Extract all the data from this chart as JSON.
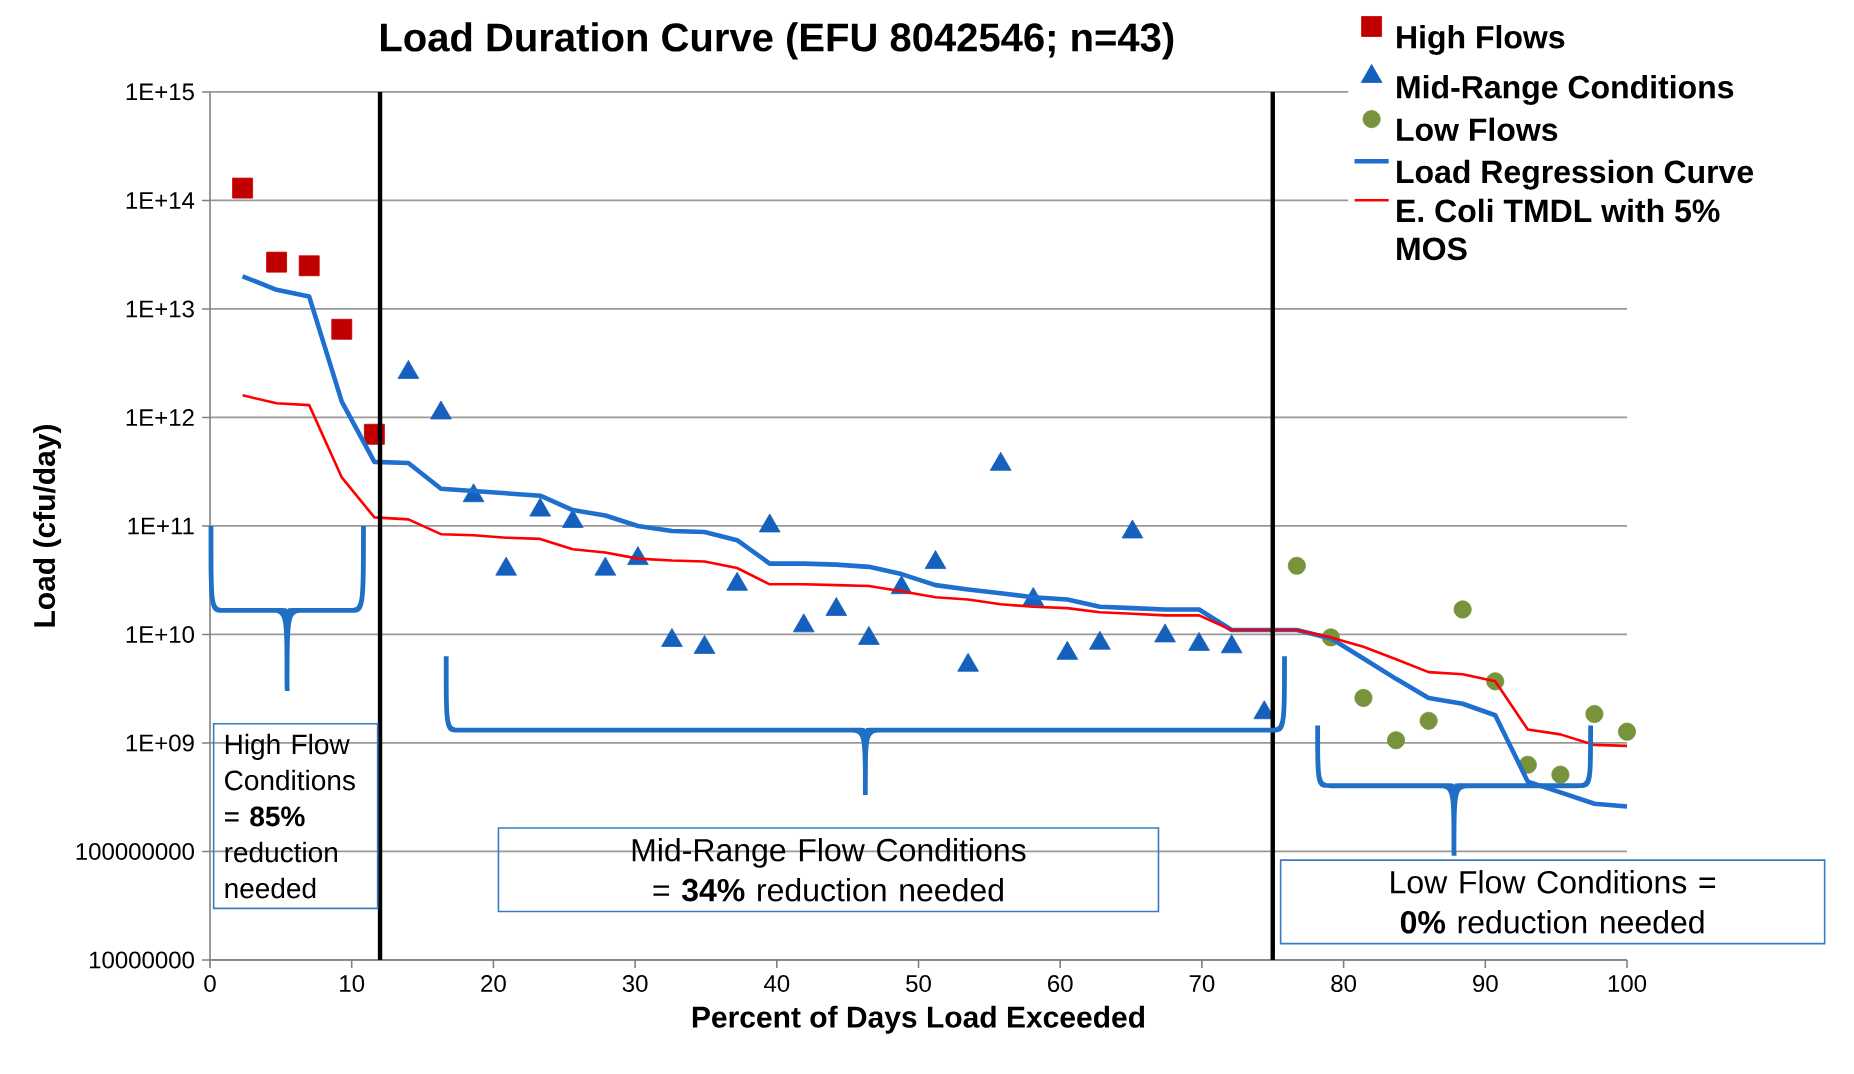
{
  "chart_data": {
    "type": "scatter",
    "title": "Load Duration Curve (EFU 8042546; n=43)",
    "xlabel": "Percent of Days Load Exceeded",
    "ylabel": "Load (cfu/day)",
    "xlim": [
      0,
      100
    ],
    "xticks": [
      0,
      10,
      20,
      30,
      40,
      50,
      60,
      70,
      80,
      90,
      100
    ],
    "ylim": [
      10000000,
      1000000000000000
    ],
    "yticks": [
      {
        "value": 10000000,
        "label": "10000000"
      },
      {
        "value": 100000000,
        "label": "100000000"
      },
      {
        "value": 1000000000,
        "label": "1E+09"
      },
      {
        "value": 10000000000,
        "label": "1E+10"
      },
      {
        "value": 100000000000,
        "label": "1E+11"
      },
      {
        "value": 1000000000000,
        "label": "1E+12"
      },
      {
        "value": 10000000000000,
        "label": "1E+13"
      },
      {
        "value": 100000000000000,
        "label": "1E+14"
      },
      {
        "value": 1000000000000000,
        "label": "1E+15"
      }
    ],
    "log": "y",
    "grid": "y",
    "legend": "top right",
    "series": [
      {
        "name": "High Flows",
        "marker": "square",
        "color": "#c00000",
        "x": [
          2.3,
          4.7,
          7.0,
          9.3,
          11.6
        ],
        "values": [
          130000000000000.0,
          27000000000000.0,
          25000000000000.0,
          6500000000000.0,
          700000000000.0
        ]
      },
      {
        "name": "Mid-Range Conditions",
        "marker": "triangle",
        "color": "#1560bd",
        "x": [
          14.0,
          16.3,
          18.6,
          20.9,
          23.3,
          25.6,
          27.9,
          30.2,
          32.6,
          34.9,
          37.2,
          39.5,
          41.9,
          44.2,
          46.5,
          48.8,
          51.2,
          53.5,
          55.8,
          58.1,
          60.5,
          62.8,
          65.1,
          67.4,
          69.8,
          72.1,
          74.4
        ],
        "values": [
          2600000000000.0,
          1100000000000.0,
          190000000000.0,
          40000000000.0,
          140000000000.0,
          110000000000.0,
          40000000000.0,
          50000000000.0,
          8800000000.0,
          7600000000.0,
          29000000000.0,
          100000000000.0,
          12000000000.0,
          17000000000.0,
          9200000000.0,
          27000000000.0,
          46000000000.0,
          5200000000.0,
          370000000000.0,
          21000000000.0,
          6700000000.0,
          8300000000.0,
          88000000000.0,
          9700000000.0,
          8100000000.0,
          7700000000.0,
          1900000000.0
        ]
      },
      {
        "name": "Low Flows",
        "marker": "circle",
        "color": "#77933c",
        "x": [
          76.7,
          79.1,
          81.4,
          83.7,
          86.0,
          88.4,
          90.7,
          93.0,
          95.3,
          97.7,
          100.0
        ],
        "values": [
          43000000000.0,
          9400000000.0,
          2600000000.0,
          1060000000.0,
          1600000000.0,
          17000000000.0,
          3700000000.0,
          630000000.0,
          510000000.0,
          1850000000.0,
          1270000000.0
        ]
      },
      {
        "name": "Load Regression Curve",
        "type": "line",
        "marker": "none",
        "color": "#1f6fd0",
        "x": [
          2.3,
          4.7,
          7.0,
          9.3,
          11.6,
          14.0,
          16.3,
          18.6,
          20.9,
          23.3,
          25.6,
          27.9,
          30.2,
          32.6,
          34.9,
          37.2,
          39.5,
          41.9,
          44.2,
          46.5,
          48.8,
          51.2,
          53.5,
          55.8,
          58.1,
          60.5,
          62.8,
          65.1,
          67.4,
          69.8,
          72.1,
          74.4,
          76.7,
          79.1,
          81.4,
          83.7,
          86.0,
          88.4,
          90.7,
          93.0,
          95.3,
          97.7,
          100.0
        ],
        "values": [
          20000000000000.0,
          15000000000000.0,
          13000000000000.0,
          1400000000000.0,
          390000000000.0,
          380000000000.0,
          220000000000.0,
          210000000000.0,
          200000000000.0,
          190000000000.0,
          140000000000.0,
          125000000000.0,
          100000000000.0,
          90000000000.0,
          88000000000.0,
          74000000000.0,
          45000000000.0,
          45000000000.0,
          44000000000.0,
          42000000000.0,
          36000000000.0,
          28500000000.0,
          26000000000.0,
          24000000000.0,
          22000000000.0,
          21000000000.0,
          18000000000.0,
          17500000000.0,
          17000000000.0,
          17000000000.0,
          11000000000.0,
          11000000000.0,
          11000000000.0,
          9200000000.0,
          6000000000.0,
          3900000000.0,
          2600000000.0,
          2300000000.0,
          1800000000.0,
          440000000.0,
          350000000.0,
          275000000.0,
          260000000.0
        ]
      },
      {
        "name": "E. Coli TMDL with 5% MOS",
        "type": "line",
        "marker": "none",
        "color": "#ff0000",
        "x": [
          2.3,
          4.7,
          7.0,
          9.3,
          11.6,
          14.0,
          16.3,
          18.6,
          20.9,
          23.3,
          25.6,
          27.9,
          30.2,
          32.6,
          34.9,
          37.2,
          39.5,
          41.9,
          44.2,
          46.5,
          48.8,
          51.2,
          53.5,
          55.8,
          58.1,
          60.5,
          62.8,
          65.1,
          67.4,
          69.8,
          72.1,
          74.4,
          76.7,
          79.1,
          81.4,
          83.7,
          86.0,
          88.4,
          90.7,
          93.0,
          95.3,
          97.7,
          100.0
        ],
        "values": [
          1600000000000.0,
          1350000000000.0,
          1300000000000.0,
          280000000000.0,
          120000000000.0,
          115000000000.0,
          84000000000.0,
          82000000000.0,
          78000000000.0,
          76000000000.0,
          61000000000.0,
          57000000000.0,
          50000000000.0,
          48000000000.0,
          47000000000.0,
          41000000000.0,
          29000000000.0,
          29000000000.0,
          28500000000.0,
          28000000000.0,
          25000000000.0,
          22000000000.0,
          21000000000.0,
          19000000000.0,
          18000000000.0,
          17500000000.0,
          16000000000.0,
          15500000000.0,
          15000000000.0,
          15000000000.0,
          11000000000.0,
          11000000000.0,
          11000000000.0,
          9400000000.0,
          7700000000.0,
          5900000000.0,
          4500000000.0,
          4300000000.0,
          3700000000.0,
          1330000000.0,
          1200000000.0,
          960000000.0,
          940000000.0
        ]
      }
    ],
    "ref_lines": [
      {
        "axis": "x",
        "value": 12,
        "color": "#000000"
      },
      {
        "axis": "x",
        "value": 75,
        "color": "#000000"
      }
    ],
    "annotations": [
      "High Flow Conditions = **85%** reduction needed",
      "Mid-Range Flow Conditions = **34%** reduction needed",
      "Low Flow Conditions = **0%** reduction needed"
    ]
  }
}
